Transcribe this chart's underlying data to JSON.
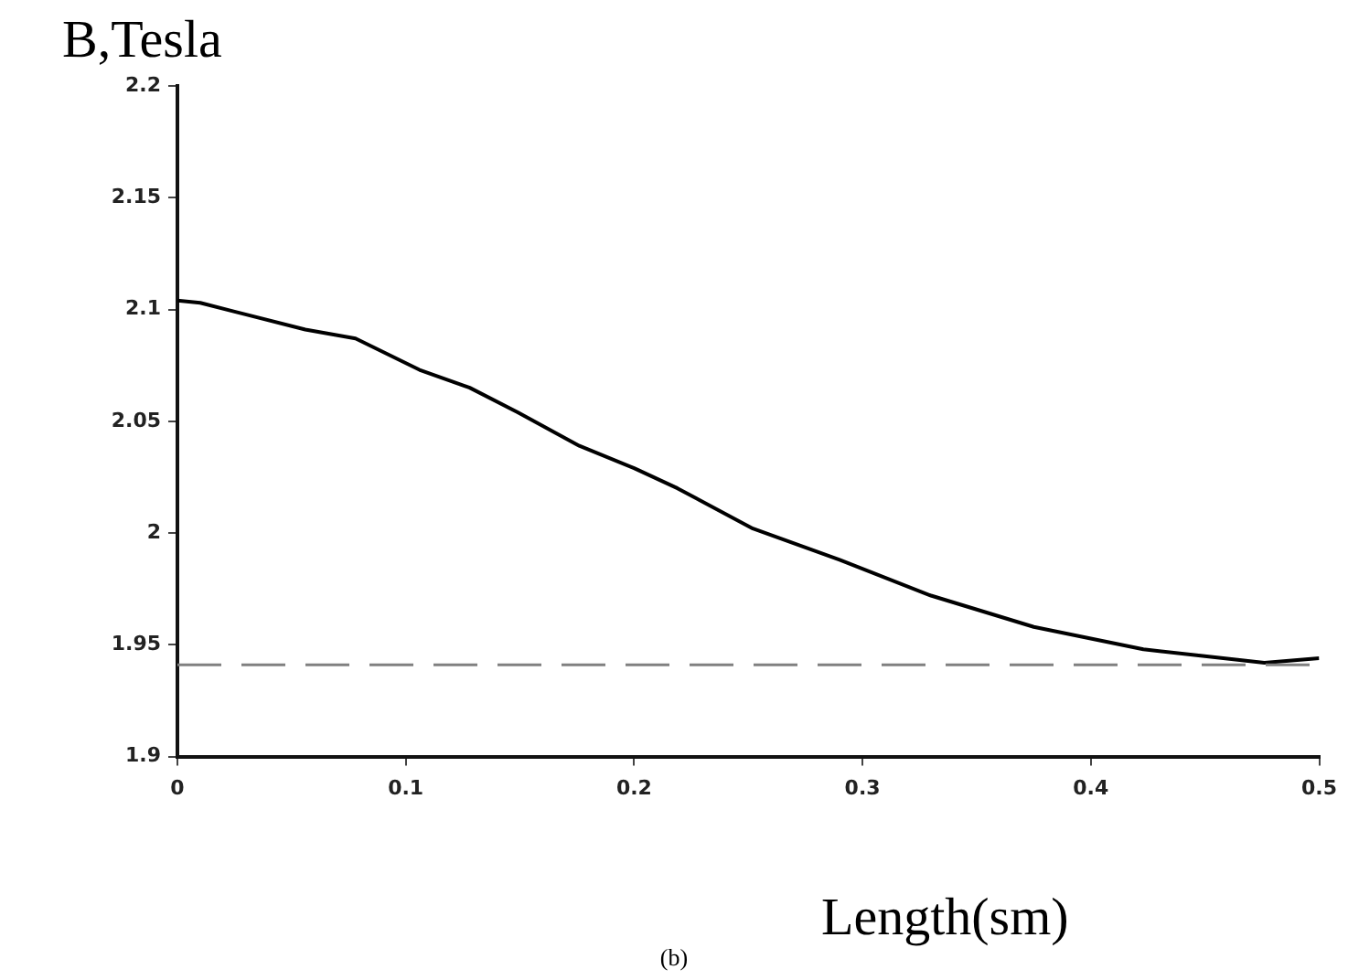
{
  "chart_data": {
    "type": "line",
    "ylabel": "B,Tesla",
    "xlabel": "Length(sm)",
    "annotations": [
      "(b)"
    ],
    "x": [
      0,
      0.01,
      0.029,
      0.056,
      0.078,
      0.106,
      0.128,
      0.149,
      0.176,
      0.2,
      0.219,
      0.252,
      0.29,
      0.33,
      0.375,
      0.423,
      0.449,
      0.476,
      0.5
    ],
    "series": [
      {
        "color": "#000000",
        "values": [
          2.104,
          2.103,
          2.098,
          2.091,
          2.087,
          2.073,
          2.065,
          2.054,
          2.039,
          2.029,
          2.02,
          2.002,
          1.988,
          1.972,
          1.958,
          1.948,
          1.945,
          1.942,
          1.944
        ]
      }
    ],
    "xlim": [
      0,
      0.5
    ],
    "xticks": [
      0,
      0.1,
      0.2,
      0.3,
      0.4,
      0.5
    ],
    "ylim": [
      1.9,
      2.2
    ],
    "yticks": [
      1.9,
      1.95,
      2,
      2.05,
      2.1,
      2.15,
      2.2
    ],
    "ref_lines": [
      {
        "axis": "y",
        "value": 1.941,
        "color": "#808080",
        "line_style": "dashed"
      }
    ],
    "grid": false,
    "legend": false,
    "marker": "none",
    "line_style": "solid"
  }
}
